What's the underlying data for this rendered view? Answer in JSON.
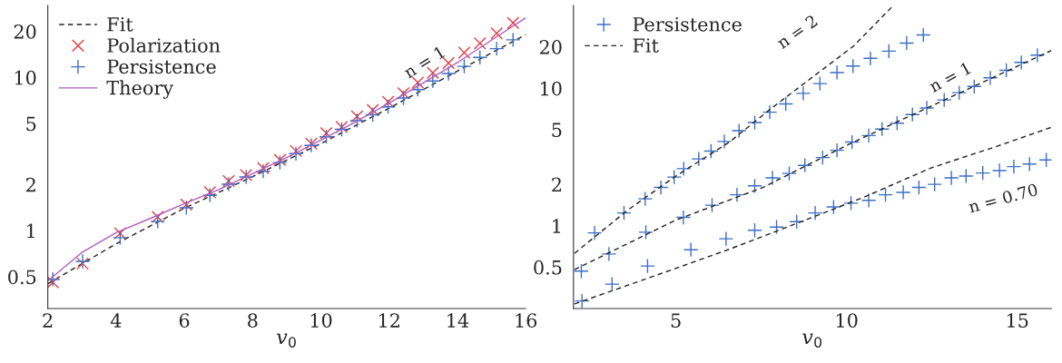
{
  "chart_data": [
    {
      "type": "scatter",
      "xlabel": "v$_{0}$",
      "log": "y",
      "xlim": [
        2,
        16
      ],
      "ylim": [
        0.31,
        29.5
      ],
      "xticks": [
        2,
        4,
        6,
        8,
        10,
        12,
        14,
        16
      ],
      "yticks": [
        0.5,
        1,
        2,
        5,
        10,
        20
      ],
      "grid": false,
      "legend": "top left",
      "annotations": [
        "n = 1"
      ],
      "series": [
        {
          "name": "Fit",
          "type": "line",
          "line_style": "dashed",
          "marker": "none",
          "color": "#222222",
          "x": [
            2,
            4,
            6,
            8,
            10,
            12,
            14,
            16
          ],
          "values": [
            0.45,
            0.82,
            1.4,
            2.25,
            3.7,
            6.3,
            11,
            19
          ]
        },
        {
          "name": "Polarization",
          "marker": "cross",
          "color": "#e8383d",
          "x": [
            2.15,
            3.02,
            4.12,
            5.22,
            6.06,
            6.75,
            7.3,
            7.81,
            8.31,
            8.8,
            9.27,
            9.72,
            10.16,
            10.61,
            11.06,
            11.52,
            11.97,
            12.42,
            12.84,
            13.28,
            13.74,
            14.2,
            14.66,
            15.15,
            15.63
          ],
          "values": [
            0.46,
            0.61,
            0.96,
            1.23,
            1.48,
            1.78,
            2.11,
            2.3,
            2.56,
            2.89,
            3.31,
            3.7,
            4.32,
            4.74,
            5.57,
            6.13,
            6.93,
            7.88,
            9.24,
            10.7,
            12.4,
            14.5,
            16.7,
            19.4,
            22.7
          ]
        },
        {
          "name": "Persistence",
          "marker": "plus",
          "color": "#3a6fc4",
          "x": [
            2.15,
            3.02,
            4.12,
            5.22,
            6.06,
            6.75,
            7.3,
            7.81,
            8.31,
            8.8,
            9.27,
            9.72,
            10.16,
            10.61,
            11.06,
            11.52,
            11.97,
            12.42,
            12.84,
            13.28,
            13.74,
            14.2,
            14.66,
            15.15,
            15.63
          ],
          "values": [
            0.48,
            0.63,
            0.9,
            1.15,
            1.41,
            1.7,
            2.01,
            2.24,
            2.44,
            2.78,
            3.18,
            3.6,
            4.1,
            4.58,
            5.22,
            5.7,
            6.43,
            7.34,
            8.33,
            9.48,
            10.6,
            11.8,
            13.5,
            15.4,
            17.6
          ]
        },
        {
          "name": "Theory",
          "type": "line",
          "line_style": "solid",
          "marker": "none",
          "color": "#b05cc0",
          "x": [
            2,
            3,
            4,
            5,
            6,
            7,
            8,
            9,
            10,
            11,
            12,
            13,
            14,
            15,
            16
          ],
          "values": [
            0.47,
            0.72,
            0.97,
            1.2,
            1.5,
            1.85,
            2.35,
            3.0,
            3.9,
            5.1,
            6.8,
            9.2,
            12.5,
            17.5,
            24.5
          ]
        }
      ]
    },
    {
      "type": "scatter",
      "xlabel": "v$_{0}$",
      "log": "y",
      "xlim": [
        2,
        16
      ],
      "ylim": [
        0.25,
        40
      ],
      "xticks": [
        5,
        10,
        15
      ],
      "yticks": [
        0.5,
        1,
        2,
        5,
        10,
        20
      ],
      "grid": false,
      "legend": "top left",
      "annotations": [
        "n = 2",
        "n = 1",
        "n = 0.70"
      ],
      "series": [
        {
          "name": "Persistence",
          "marker": "plus",
          "color": "#3a6fc4",
          "x": [
            2.62,
            3.48,
            4.1,
            4.56,
            4.95,
            5.23,
            5.67,
            6.03,
            6.42,
            6.85,
            7.31,
            7.75,
            8.22,
            8.73,
            9.22,
            9.72,
            10.19,
            10.7,
            11.24,
            11.76,
            12.25
          ],
          "values": [
            0.887,
            1.24,
            1.57,
            1.9,
            2.26,
            2.6,
            3.06,
            3.49,
            4.1,
            4.91,
            5.63,
            6.7,
            7.7,
            9.18,
            10.8,
            13.0,
            14.5,
            16.5,
            18.6,
            21.3,
            24.4
          ]
        },
        {
          "marker": "plus",
          "color": "#3a6fc4",
          "x": [
            2.23,
            3.04,
            4.12,
            5.22,
            6.06,
            6.79,
            7.31,
            7.83,
            8.32,
            8.78,
            9.3,
            9.72,
            10.16,
            10.65,
            11.04,
            11.48,
            11.93,
            12.35,
            12.86,
            13.3,
            13.74,
            14.21,
            14.68,
            15.12,
            15.59
          ],
          "values": [
            0.468,
            0.623,
            0.897,
            1.15,
            1.41,
            1.68,
            1.95,
            2.23,
            2.4,
            2.75,
            3.13,
            3.54,
            4.06,
            4.53,
            5.05,
            5.57,
            6.44,
            7.19,
            8.22,
            9.28,
            10.3,
            11.9,
            13.5,
            15.4,
            17.4
          ]
        },
        {
          "marker": "plus",
          "color": "#3a6fc4",
          "x": [
            2.25,
            3.13,
            4.17,
            5.44,
            6.47,
            7.31,
            7.95,
            8.54,
            9.08,
            9.62,
            10.13,
            10.65,
            11.14,
            11.66,
            12.12,
            12.58,
            13.07,
            13.5,
            13.99,
            14.48,
            14.9,
            15.36,
            15.85
          ],
          "values": [
            0.284,
            0.376,
            0.51,
            0.669,
            0.804,
            0.927,
            0.978,
            1.07,
            1.24,
            1.37,
            1.46,
            1.53,
            1.68,
            1.75,
            1.9,
            2.0,
            2.23,
            2.3,
            2.42,
            2.52,
            2.69,
            2.81,
            3.01
          ]
        },
        {
          "name": "Fit",
          "type": "line",
          "line_style": "dashed",
          "marker": "none",
          "color": "#222222",
          "x": [
            2.03,
            3.59,
            5,
            6.57,
            7.75,
            9.03,
            10.2,
            11.35
          ],
          "values": [
            0.63,
            1.3,
            2.3,
            4.06,
            7.0,
            12.2,
            20.2,
            39.5
          ]
        },
        {
          "type": "line",
          "line_style": "dashed",
          "marker": "none",
          "color": "#222222",
          "x": [
            2.03,
            5,
            7.55,
            10,
            12.47,
            16
          ],
          "values": [
            0.48,
            1.1,
            1.9,
            3.84,
            7.4,
            18.8
          ]
        },
        {
          "type": "line",
          "line_style": "dashed",
          "marker": "none",
          "color": "#222222",
          "x": [
            2.03,
            3.6,
            5,
            6.57,
            8.54,
            10.5,
            12.47,
            14.43,
            16
          ],
          "values": [
            0.27,
            0.37,
            0.49,
            0.676,
            1.04,
            1.61,
            2.63,
            3.8,
            5.2
          ]
        }
      ]
    }
  ]
}
